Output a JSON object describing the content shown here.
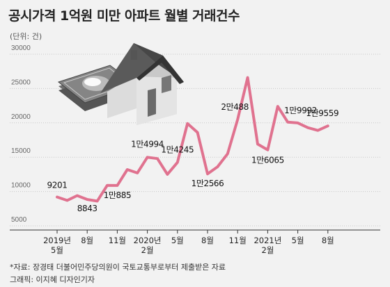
{
  "title": "공시가격 1억원 미만 아파트 월별 거래건수",
  "unit_label": "(단위: 건)",
  "source": "*자료: 장경태 더불어민주당의원이 국토교통부로부터 제출받은 자료",
  "credit": "그래픽: 이지혜 디자인기자",
  "chart_data": {
    "type": "line",
    "ylim": [
      5000,
      30000
    ],
    "yticks": [
      5000,
      10000,
      15000,
      20000,
      25000,
      30000
    ],
    "grid": true,
    "line_color": "#e0728f",
    "x_ticks": [
      {
        "i": 0,
        "label": "2019년\n5월"
      },
      {
        "i": 3,
        "label": "8월"
      },
      {
        "i": 6,
        "label": "11월"
      },
      {
        "i": 9,
        "label": "2020년\n2월"
      },
      {
        "i": 12,
        "label": "5월"
      },
      {
        "i": 15,
        "label": "8월"
      },
      {
        "i": 18,
        "label": "11월"
      },
      {
        "i": 21,
        "label": "2021년\n2월"
      },
      {
        "i": 24,
        "label": "5월"
      },
      {
        "i": 27,
        "label": "8월"
      }
    ],
    "values": [
      9201,
      8700,
      9400,
      8843,
      8600,
      10900,
      10885,
      13200,
      12700,
      14994,
      14800,
      12500,
      14245,
      19900,
      18600,
      12566,
      13600,
      15500,
      20488,
      26600,
      16900,
      16065,
      22400,
      20100,
      19992,
      19300,
      18900,
      19559
    ],
    "data_labels": [
      {
        "i": 0,
        "text": "9201"
      },
      {
        "i": 3,
        "text": "8843"
      },
      {
        "i": 6,
        "text": "1만885"
      },
      {
        "i": 9,
        "text": "1만4994"
      },
      {
        "i": 12,
        "text": "1만4245"
      },
      {
        "i": 15,
        "text": "1만2566"
      },
      {
        "i": 18,
        "text": "2만488"
      },
      {
        "i": 21,
        "text": "1만6065"
      },
      {
        "i": 24,
        "text": "1만9992"
      },
      {
        "i": 27,
        "text": "1만9559"
      }
    ]
  }
}
